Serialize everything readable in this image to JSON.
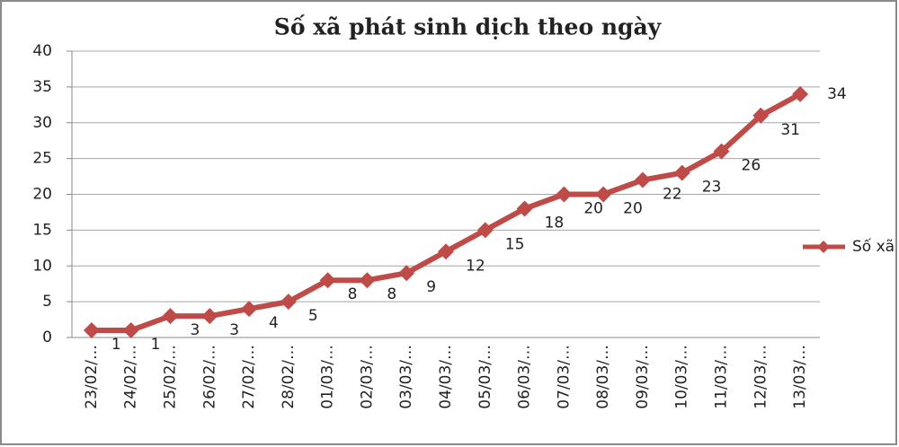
{
  "chart_data": {
    "type": "line",
    "title": "Số xã phát sinh dịch theo ngày",
    "categories": [
      "23/02/…",
      "24/02/…",
      "25/02/…",
      "26/02/…",
      "27/02/…",
      "28/02/…",
      "01/03/…",
      "02/03/…",
      "03/03/…",
      "04/03/…",
      "05/03/…",
      "06/03/…",
      "07/03/…",
      "08/03/…",
      "09/03/…",
      "10/03/…",
      "11/03/…",
      "12/03/…",
      "13/03/…"
    ],
    "series": [
      {
        "name": "Số xã",
        "color": "#be4b48",
        "values": [
          1,
          1,
          3,
          3,
          4,
          5,
          8,
          8,
          9,
          12,
          15,
          18,
          20,
          20,
          22,
          23,
          26,
          31,
          34
        ]
      }
    ],
    "ylim": [
      0,
      40
    ],
    "yticks": [
      0,
      5,
      10,
      15,
      20,
      25,
      30,
      35,
      40
    ],
    "grid": true,
    "legend": "right"
  }
}
